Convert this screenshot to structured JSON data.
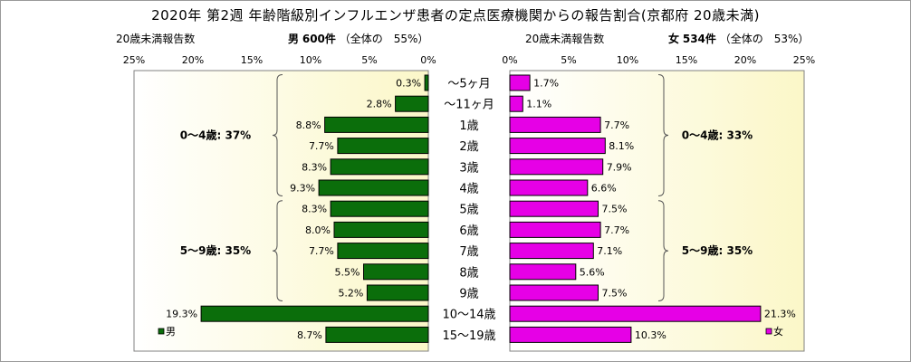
{
  "title": "2020年 第2週 年齢階級別インフルエンザ患者の定点医療機関からの報告割合(京都府 20歳未満)",
  "left_header": {
    "caption": "20歳未満報告数",
    "sex_label": "男",
    "count": "600件",
    "share": "（全体の　55%）"
  },
  "right_header": {
    "caption": "20歳未満報告数",
    "sex_label": "女",
    "count": "534件",
    "share": "（全体の　53%）"
  },
  "colors": {
    "male": "#0b6e0b",
    "female": "#e600e6",
    "plot_bg_start": "#ffffff",
    "plot_bg_end": "#fbf7c8"
  },
  "chart_data": {
    "type": "bar",
    "orientation": "horizontal-population-pyramid",
    "categories": [
      "～5ヶ月",
      "～11ヶ月",
      "1歳",
      "2歳",
      "3歳",
      "4歳",
      "5歳",
      "6歳",
      "7歳",
      "8歳",
      "9歳",
      "10～14歳",
      "15～19歳"
    ],
    "series": [
      {
        "name": "男",
        "values": [
          0.3,
          2.8,
          8.8,
          7.7,
          8.3,
          9.3,
          8.3,
          8.0,
          7.7,
          5.5,
          5.2,
          19.3,
          8.7
        ],
        "labels": [
          "0.3%",
          "2.8%",
          "8.8%",
          "7.7%",
          "8.3%",
          "9.3%",
          "8.3%",
          "8.0%",
          "7.7%",
          "5.5%",
          "5.2%",
          "19.3%",
          "8.7%"
        ]
      },
      {
        "name": "女",
        "values": [
          1.7,
          1.1,
          7.7,
          8.1,
          7.9,
          6.6,
          7.5,
          7.7,
          7.1,
          5.6,
          7.5,
          21.3,
          10.3
        ],
        "labels": [
          "1.7%",
          "1.1%",
          "7.7%",
          "8.1%",
          "7.9%",
          "6.6%",
          "7.5%",
          "7.7%",
          "7.1%",
          "5.6%",
          "7.5%",
          "21.3%",
          "10.3%"
        ]
      }
    ],
    "xlim": [
      0,
      25
    ],
    "ticks": [
      "0%",
      "5%",
      "10%",
      "15%",
      "20%",
      "25%"
    ],
    "group_annotations": {
      "male": [
        {
          "text": "0～4歳: 37%",
          "from": 0,
          "to": 5
        },
        {
          "text": "5～9歳: 35%",
          "from": 6,
          "to": 10
        }
      ],
      "female": [
        {
          "text": "0～4歳: 33%",
          "from": 0,
          "to": 5
        },
        {
          "text": "5～9歳: 35%",
          "from": 6,
          "to": 10
        }
      ]
    },
    "legend": {
      "male": "男",
      "female": "女"
    }
  }
}
